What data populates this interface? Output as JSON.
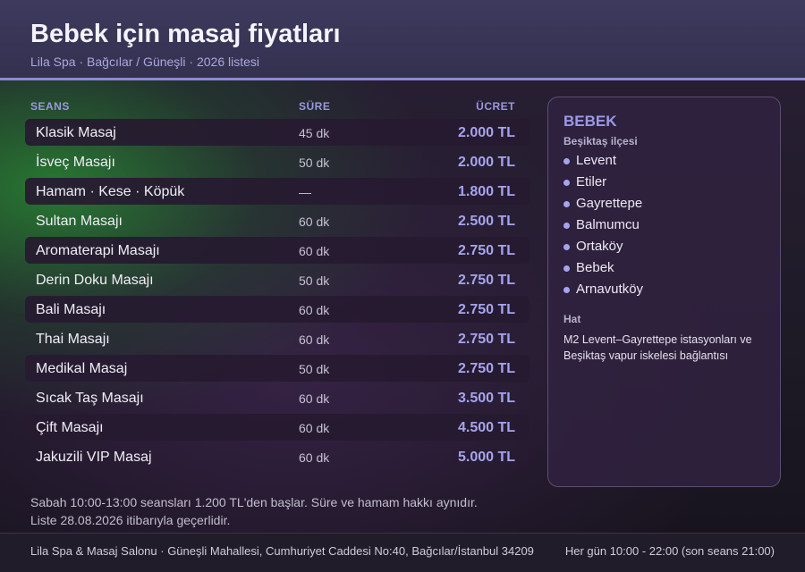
{
  "header": {
    "title": "Bebek için masaj fiyatları",
    "subtitle": "Lila Spa · Bağcılar / Güneşli · 2026 listesi"
  },
  "table": {
    "col_seans": "SEANS",
    "col_sure": "SÜRE",
    "col_ucret": "ÜCRET",
    "rows": [
      {
        "name": "Klasik Masaj",
        "duration": "45 dk",
        "price": "2.000 TL"
      },
      {
        "name": "İsveç Masajı",
        "duration": "50 dk",
        "price": "2.000 TL"
      },
      {
        "name": "Hamam · Kese · Köpük",
        "duration": "—",
        "price": "1.800 TL"
      },
      {
        "name": "Sultan Masajı",
        "duration": "60 dk",
        "price": "2.500 TL"
      },
      {
        "name": "Aromaterapi Masajı",
        "duration": "60 dk",
        "price": "2.750 TL"
      },
      {
        "name": "Derin Doku Masajı",
        "duration": "50 dk",
        "price": "2.750 TL"
      },
      {
        "name": "Bali Masajı",
        "duration": "60 dk",
        "price": "2.750 TL"
      },
      {
        "name": "Thai Masajı",
        "duration": "60 dk",
        "price": "2.750 TL"
      },
      {
        "name": "Medikal Masaj",
        "duration": "50 dk",
        "price": "2.750 TL"
      },
      {
        "name": "Sıcak Taş Masajı",
        "duration": "60 dk",
        "price": "3.500 TL"
      },
      {
        "name": "Çift Masajı",
        "duration": "60 dk",
        "price": "4.500 TL"
      },
      {
        "name": "Jakuzili VIP Masaj",
        "duration": "60 dk",
        "price": "5.000 TL"
      }
    ]
  },
  "sidebar": {
    "title": "BEBEK",
    "subtitle": "Beşiktaş ilçesi",
    "neighborhoods": [
      "Levent",
      "Etiler",
      "Gayrettepe",
      "Balmumcu",
      "Ortaköy",
      "Bebek",
      "Arnavutköy"
    ],
    "hat_label": "Hat",
    "hat_text": "M2 Levent–Gayrettepe istasyonları ve Beşiktaş vapur iskelesi bağlantısı"
  },
  "note": {
    "line1": "Sabah 10:00-13:00 seansları 1.200 TL'den başlar. Süre ve hamam hakkı aynıdır.",
    "line2": "Liste 28.08.2026 itibarıyla geçerlidir."
  },
  "footer": {
    "address": "Lila Spa & Masaj Salonu · Güneşli Mahallesi, Cumhuriyet Caddesi No:40, Bağcılar/İstanbul 34209",
    "hours": "Her gün 10:00 - 22:00 (son seans 21:00)"
  },
  "colors": {
    "accent": "#a6a4ee",
    "header_bg": "#3a3658",
    "header_border": "#8d8ad2",
    "green_glow": "#2a8a34"
  },
  "icons": {
    "list_bullet": "bullet-dot-icon"
  }
}
